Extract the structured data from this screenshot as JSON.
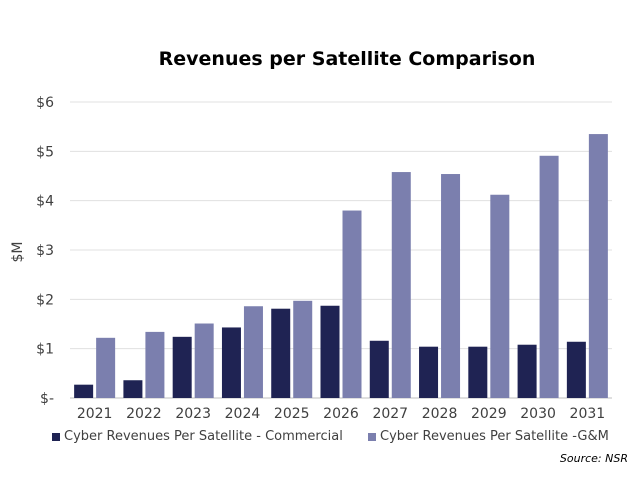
{
  "chart_data": {
    "type": "bar",
    "title": "Revenues per Satellite Comparison",
    "ylabel": "$M",
    "xlabel": "",
    "categories": [
      "2021",
      "2022",
      "2023",
      "2024",
      "2025",
      "2026",
      "2027",
      "2028",
      "2029",
      "2030",
      "2031"
    ],
    "series": [
      {
        "name": "Cyber Revenues Per Satellite - Commercial",
        "color": "#1f2353",
        "values": [
          0.27,
          0.36,
          1.24,
          1.43,
          1.81,
          1.87,
          1.16,
          1.04,
          1.04,
          1.08,
          1.14
        ]
      },
      {
        "name": "Cyber Revenues Per Satellite -G&M",
        "color": "#7b7fae",
        "values": [
          1.22,
          1.34,
          1.51,
          1.86,
          1.97,
          3.8,
          4.58,
          4.54,
          4.12,
          4.91,
          5.35
        ]
      }
    ],
    "ylim": [
      0,
      6
    ],
    "yticks": [
      0,
      1,
      2,
      3,
      4,
      5,
      6
    ],
    "ytick_labels": [
      "$-",
      "$1",
      "$2",
      "$3",
      "$4",
      "$5",
      "$6"
    ],
    "grid": true,
    "legend_position": "bottom",
    "source": "Source: NSR"
  }
}
